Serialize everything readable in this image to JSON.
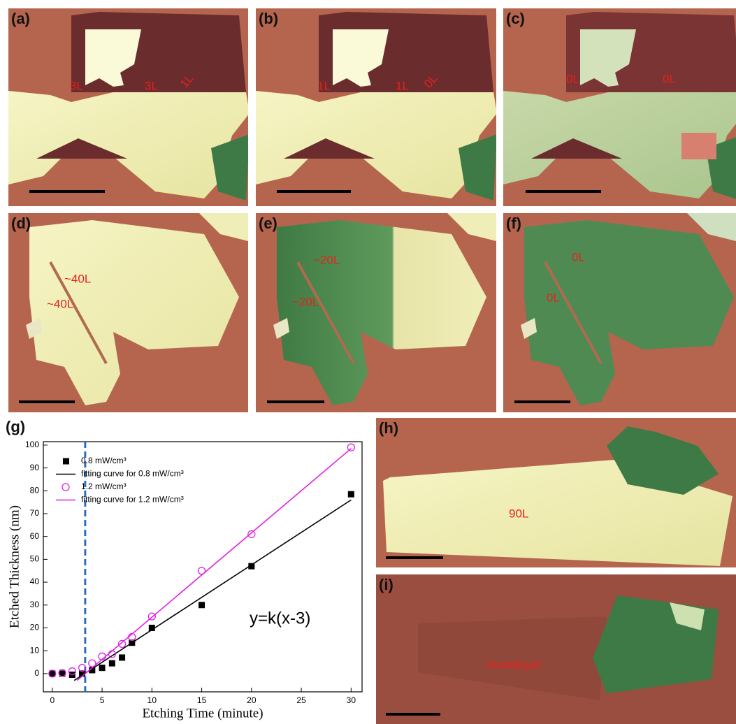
{
  "panels": [
    {
      "label": "(a)",
      "annotations": [
        "3L",
        "3L",
        "1L"
      ]
    },
    {
      "label": "(b)",
      "annotations": [
        "1L",
        "1L",
        "0L"
      ]
    },
    {
      "label": "(c)",
      "annotations": [
        "0L",
        "0L"
      ]
    },
    {
      "label": "(d)",
      "annotations": [
        "~40L",
        "~40L"
      ]
    },
    {
      "label": "(e)",
      "annotations": [
        "~20L",
        "~20L"
      ]
    },
    {
      "label": "(f)",
      "annotations": [
        "0L",
        "0L"
      ]
    },
    {
      "label": "(h)",
      "annotations": [
        "90L"
      ]
    },
    {
      "label": "(i)",
      "annotations": [
        "monolayer"
      ]
    }
  ],
  "chart_data": {
    "type": "scatter",
    "panel_label": "(g)",
    "x_label": "Etching Time (minute)",
    "y_label": "Etched Thickness (nm)",
    "annotation": "y=k(x-3)",
    "xlim": [
      -0.9,
      31.1
    ],
    "ylim": [
      -8,
      101.5
    ],
    "xticks": [
      0,
      5,
      10,
      15,
      20,
      25,
      30
    ],
    "yticks": [
      0,
      10,
      20,
      30,
      40,
      50,
      60,
      70,
      80,
      90,
      100
    ],
    "vline": {
      "x": 3.3,
      "color": "#2a6fbf"
    },
    "series": [
      {
        "name": "0.8 mW/cm³",
        "color": "#000000",
        "marker": "square",
        "x": [
          0,
          1,
          2,
          3,
          4,
          5,
          6,
          7,
          8,
          10,
          15,
          20,
          30
        ],
        "values": [
          0,
          0,
          -0.5,
          0,
          1.5,
          2.5,
          4.5,
          7,
          13.5,
          20,
          30,
          47,
          78.5
        ]
      },
      {
        "name": "fitting curve for 0.8 mW/cm³",
        "color": "#000000",
        "marker": "line",
        "x": [
          2.2,
          30
        ],
        "values": [
          -3,
          76
        ]
      },
      {
        "name": "1.2 mW/cm³",
        "color": "#e020e0",
        "marker": "circle",
        "x": [
          0,
          1,
          2,
          3,
          4,
          5,
          6,
          7,
          8,
          10,
          15,
          20,
          30
        ],
        "values": [
          0,
          0.3,
          1,
          2.5,
          4.5,
          7.5,
          8.5,
          13,
          16,
          25,
          45,
          61,
          99
        ]
      },
      {
        "name": "fitting curve for 1.2 mW/cm³",
        "color": "#e020e0",
        "marker": "line",
        "x": [
          2.5,
          30
        ],
        "values": [
          -3,
          98.5
        ]
      }
    ]
  }
}
